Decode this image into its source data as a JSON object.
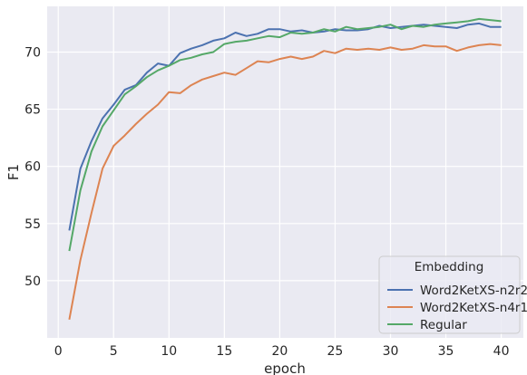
{
  "chart_data": {
    "type": "line",
    "xlabel": "epoch",
    "ylabel": "F1",
    "xlim": [
      -1,
      42
    ],
    "ylim": [
      45,
      74
    ],
    "xticks": [
      0,
      5,
      10,
      15,
      20,
      25,
      30,
      35,
      40
    ],
    "yticks": [
      50,
      55,
      60,
      65,
      70
    ],
    "grid": true,
    "background": "#eaeaf2",
    "legend": {
      "title": "Embedding",
      "placement": "lower-right"
    },
    "x": [
      1,
      2,
      3,
      4,
      5,
      6,
      7,
      8,
      9,
      10,
      11,
      12,
      13,
      14,
      15,
      16,
      17,
      18,
      19,
      20,
      21,
      22,
      23,
      24,
      25,
      26,
      27,
      28,
      29,
      30,
      31,
      32,
      33,
      34,
      35,
      36,
      37,
      38,
      39,
      40
    ],
    "series": [
      {
        "name": "Word2KetXS-n2r2",
        "color": "#4c72b0",
        "values": [
          54.4,
          59.8,
          62.2,
          64.2,
          65.4,
          66.7,
          67.1,
          68.2,
          69.0,
          68.8,
          69.9,
          70.3,
          70.6,
          71.0,
          71.2,
          71.7,
          71.4,
          71.6,
          72.0,
          72.0,
          71.8,
          71.9,
          71.7,
          71.8,
          72.0,
          71.9,
          71.9,
          72.0,
          72.3,
          72.1,
          72.2,
          72.3,
          72.4,
          72.3,
          72.2,
          72.1,
          72.4,
          72.5,
          72.2,
          72.2
        ]
      },
      {
        "name": "Word2KetXS-n4r1",
        "color": "#dd8452",
        "values": [
          46.6,
          51.8,
          55.9,
          59.8,
          61.8,
          62.7,
          63.7,
          64.6,
          65.4,
          66.5,
          66.4,
          67.1,
          67.6,
          67.9,
          68.2,
          68.0,
          68.6,
          69.2,
          69.1,
          69.4,
          69.6,
          69.4,
          69.6,
          70.1,
          69.9,
          70.3,
          70.2,
          70.3,
          70.2,
          70.4,
          70.2,
          70.3,
          70.6,
          70.5,
          70.5,
          70.1,
          70.4,
          70.6,
          70.7,
          70.6
        ]
      },
      {
        "name": "Regular",
        "color": "#55a868",
        "values": [
          52.6,
          57.9,
          61.3,
          63.5,
          64.9,
          66.3,
          67.0,
          67.8,
          68.4,
          68.8,
          69.3,
          69.5,
          69.8,
          70.0,
          70.7,
          70.9,
          71.0,
          71.2,
          71.4,
          71.3,
          71.7,
          71.6,
          71.7,
          72.0,
          71.8,
          72.2,
          72.0,
          72.1,
          72.2,
          72.4,
          72.0,
          72.3,
          72.2,
          72.4,
          72.5,
          72.6,
          72.7,
          72.9,
          72.8,
          72.7
        ]
      }
    ]
  }
}
